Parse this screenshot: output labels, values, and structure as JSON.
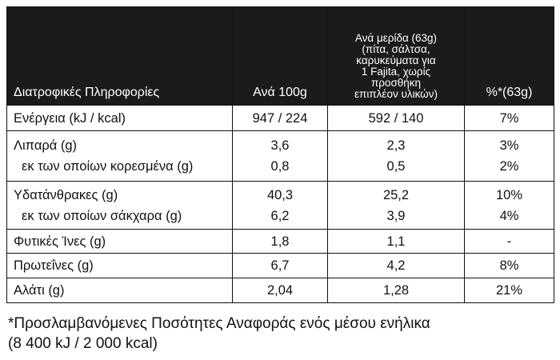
{
  "table": {
    "header": [
      "Διατροφικές Πληροφορίες",
      "Ανά 100g",
      "Ανά μερίδα (63g)\n(πίτα, σάλτσα,\nκαρυκεύματα για\n1 Fajita, χωρίς\nπροσθήκη\nεπιπλέον υλικών)",
      "%*(63g)"
    ],
    "groups": [
      [
        [
          "Ενέργεια (kJ / kcal)",
          "947 / 224",
          "592 / 140",
          "7%"
        ]
      ],
      [
        [
          "Λιπαρά (g)",
          "3,6",
          "2,3",
          "3%"
        ],
        [
          "εκ των οποίων κορεσμένα (g)",
          "0,8",
          "0,5",
          "2%"
        ]
      ],
      [
        [
          "Υδατάνθρακες (g)",
          "40,3",
          "25,2",
          "10%"
        ],
        [
          "εκ των οποίων σάκχαρα (g)",
          "6,2",
          "3,9",
          "4%"
        ]
      ],
      [
        [
          "Φυτικές Ίνες (g)",
          "1,8",
          "1,1",
          "-"
        ]
      ],
      [
        [
          "Πρωτεΐνες (g)",
          "6,7",
          "4,2",
          "8%"
        ]
      ],
      [
        [
          "Αλάτι (g)",
          "2,04",
          "1,28",
          "21%"
        ]
      ]
    ]
  },
  "footnote": [
    "*Προσλαμβανόμενες Ποσότητες Αναφοράς ενός μέσου ενήλικα",
    "(8 400 kJ / 2 000 kcal)"
  ]
}
